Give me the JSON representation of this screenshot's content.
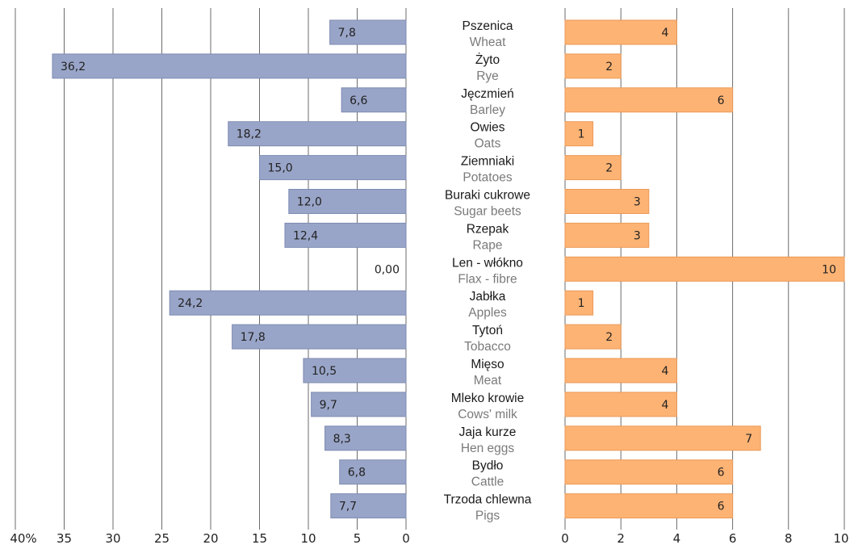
{
  "colors": {
    "left_bar": "#99a5c8",
    "left_bar_stroke": "#7e8bb2",
    "right_bar": "#fdb374",
    "right_bar_stroke": "#eb9a57",
    "grid": "#6b6b6b"
  },
  "chart_data": [
    {
      "type": "bar",
      "orientation": "horizontal",
      "direction": "right-to-left",
      "categories": [
        "Pszenica / Wheat",
        "Żyto / Rye",
        "Jęczmień / Barley",
        "Owies / Oats",
        "Ziemniaki / Potatoes",
        "Buraki cukrowe / Sugar beets",
        "Rzepak / Rape",
        "Len - włókno / Flax - fibre",
        "Jabłka / Apples",
        "Tytoń / Tobacco",
        "Mięso / Meat",
        "Mleko krowie / Cows' milk",
        "Jaja kurze / Hen eggs",
        "Bydło / Cattle",
        "Trzoda chlewna / Pigs"
      ],
      "values": [
        7.8,
        36.2,
        6.6,
        18.2,
        15.0,
        12.0,
        12.4,
        0.0,
        24.2,
        17.8,
        10.5,
        9.7,
        8.3,
        6.8,
        7.7
      ],
      "labels": [
        "7,8",
        "36,2",
        "6,6",
        "18,2",
        "15,0",
        "12,0",
        "12,4",
        "0,00",
        "24,2",
        "17,8",
        "10,5",
        "9,7",
        "8,3",
        "6,8",
        "7,7"
      ],
      "xlim": [
        0,
        40
      ],
      "ticks": [
        "40%",
        "35",
        "30",
        "25",
        "20",
        "15",
        "10",
        "5",
        "0"
      ],
      "grid": true
    },
    {
      "type": "bar",
      "orientation": "horizontal",
      "categories": [
        "Pszenica / Wheat",
        "Żyto / Rye",
        "Jęczmień / Barley",
        "Owies / Oats",
        "Ziemniaki / Potatoes",
        "Buraki cukrowe / Sugar beets",
        "Rzepak / Rape",
        "Len - włókno / Flax - fibre",
        "Jabłka / Apples",
        "Tytoń / Tobacco",
        "Mięso / Meat",
        "Mleko krowie / Cows' milk",
        "Jaja kurze / Hen eggs",
        "Bydło / Cattle",
        "Trzoda chlewna / Pigs"
      ],
      "values": [
        4,
        2,
        6,
        1,
        2,
        3,
        3,
        10,
        1,
        2,
        4,
        4,
        7,
        6,
        6
      ],
      "labels": [
        "4",
        "2",
        "6",
        "1",
        "2",
        "3",
        "3",
        "10",
        "1",
        "2",
        "4",
        "4",
        "7",
        "6",
        "6"
      ],
      "xlim": [
        0,
        10
      ],
      "ticks": [
        "0",
        "2",
        "4",
        "6",
        "8",
        "10"
      ],
      "grid": true
    }
  ],
  "row_labels": [
    {
      "pl": "Pszenica",
      "en": "Wheat"
    },
    {
      "pl": "Żyto",
      "en": "Rye"
    },
    {
      "pl": "Jęczmień",
      "en": "Barley"
    },
    {
      "pl": "Owies",
      "en": "Oats"
    },
    {
      "pl": "Ziemniaki",
      "en": "Potatoes"
    },
    {
      "pl": "Buraki cukrowe",
      "en": "Sugar beets"
    },
    {
      "pl": "Rzepak",
      "en": "Rape"
    },
    {
      "pl": "Len - włókno",
      "en": "Flax - fibre"
    },
    {
      "pl": "Jabłka",
      "en": "Apples"
    },
    {
      "pl": "Tytoń",
      "en": "Tobacco"
    },
    {
      "pl": "Mięso",
      "en": "Meat"
    },
    {
      "pl": "Mleko krowie",
      "en": "Cows' milk"
    },
    {
      "pl": "Jaja kurze",
      "en": "Hen eggs"
    },
    {
      "pl": "Bydło",
      "en": "Cattle"
    },
    {
      "pl": "Trzoda chlewna",
      "en": "Pigs"
    }
  ]
}
